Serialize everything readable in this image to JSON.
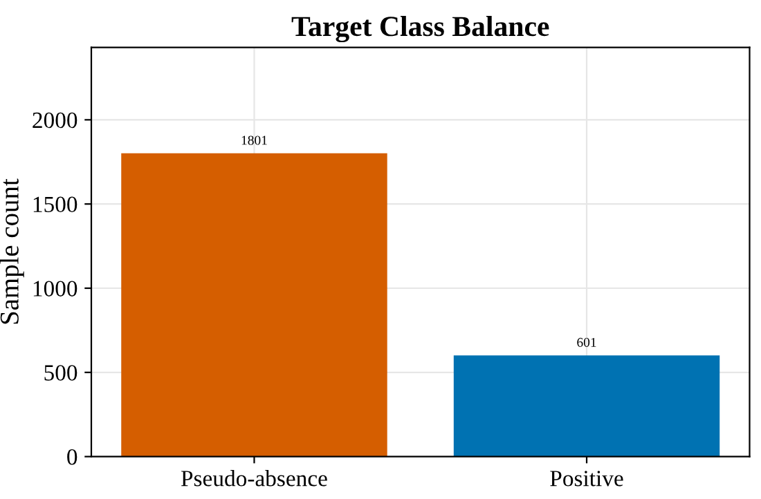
{
  "chart_data": {
    "type": "bar",
    "title": "Target Class Balance",
    "ylabel": "Sample count",
    "categories": [
      "Pseudo-absence",
      "Positive"
    ],
    "values": [
      1801,
      601
    ],
    "colors": [
      "#d55e00",
      "#0072b2"
    ],
    "ylim": [
      0,
      2430
    ],
    "yticks": [
      0,
      500,
      1000,
      1500,
      2000
    ],
    "grid": true,
    "data_labels": true
  }
}
